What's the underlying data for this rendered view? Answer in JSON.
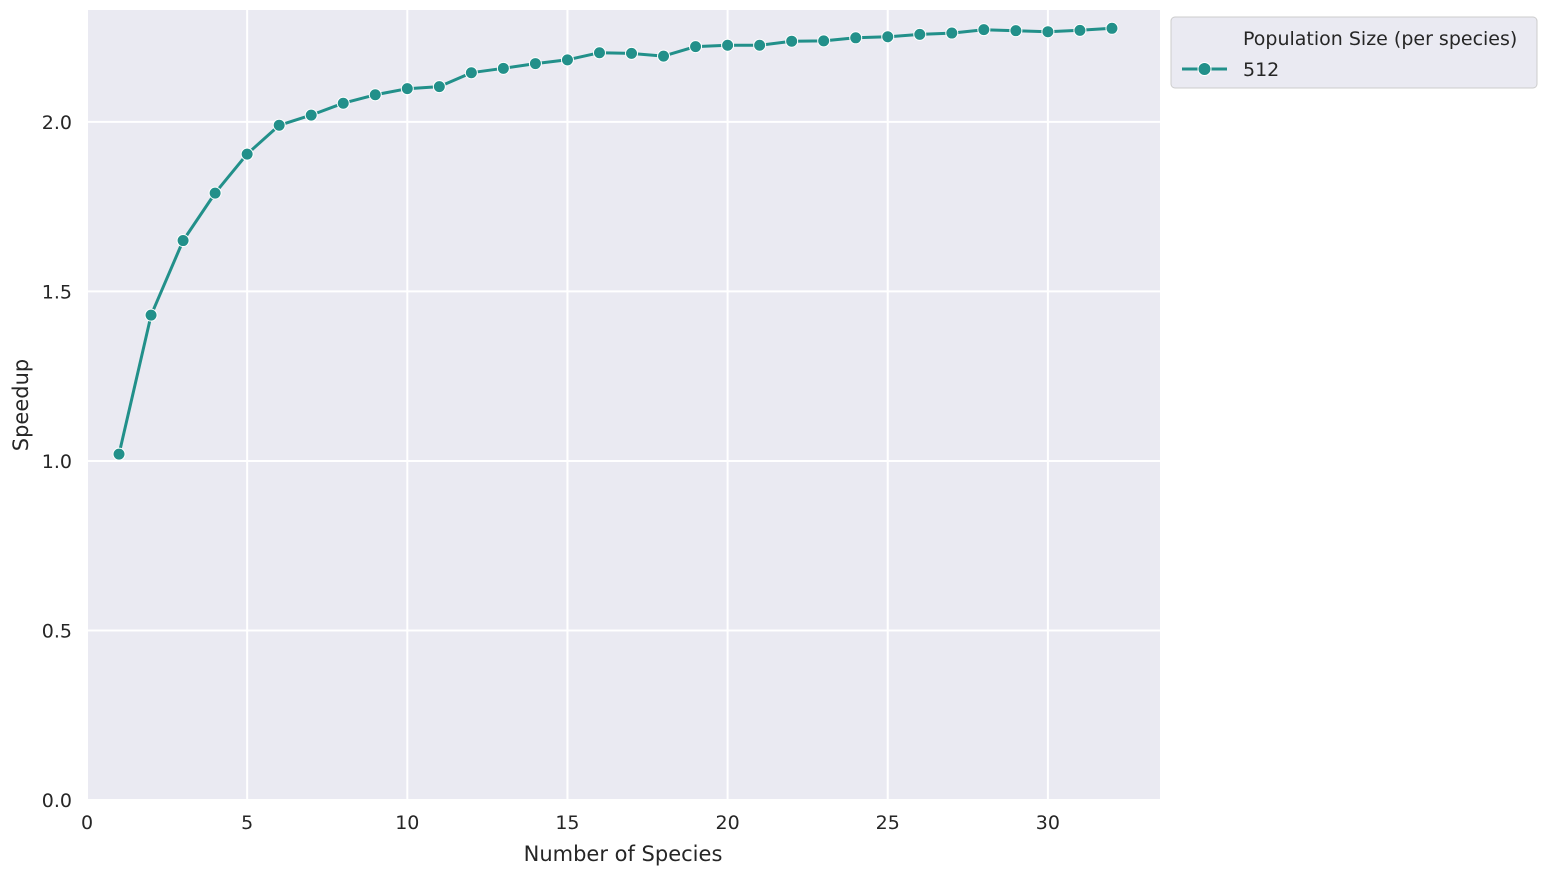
{
  "chart_data": {
    "type": "line",
    "title": "",
    "xlabel": "Number of Species",
    "ylabel": "Speedup",
    "xlim": [
      0,
      33.5
    ],
    "ylim": [
      0,
      2.33
    ],
    "xticks": [
      "0",
      "5",
      "10",
      "15",
      "20",
      "25",
      "30"
    ],
    "yticks": [
      "0.0",
      "0.5",
      "1.0",
      "1.5",
      "2.0"
    ],
    "grid": true,
    "legend": {
      "placement": "outside-top-right",
      "title": "Population Size (per species)"
    },
    "series": [
      {
        "name": "512",
        "color": "#22908a",
        "x": [
          1,
          2,
          3,
          4,
          5,
          6,
          7,
          8,
          9,
          10,
          11,
          12,
          13,
          14,
          15,
          16,
          17,
          18,
          19,
          20,
          21,
          22,
          23,
          24,
          25,
          26,
          27,
          28,
          29,
          30,
          31,
          32
        ],
        "values": [
          1.02,
          1.43,
          1.65,
          1.79,
          1.905,
          1.99,
          2.02,
          2.055,
          2.08,
          2.098,
          2.104,
          2.145,
          2.158,
          2.172,
          2.183,
          2.204,
          2.202,
          2.194,
          2.222,
          2.226,
          2.226,
          2.238,
          2.239,
          2.248,
          2.251,
          2.258,
          2.262,
          2.272,
          2.269,
          2.266,
          2.27,
          2.276
        ]
      }
    ]
  },
  "colors": {
    "plot_background": "#eaeaf2",
    "grid": "#ffffff",
    "series": "#22908a"
  }
}
